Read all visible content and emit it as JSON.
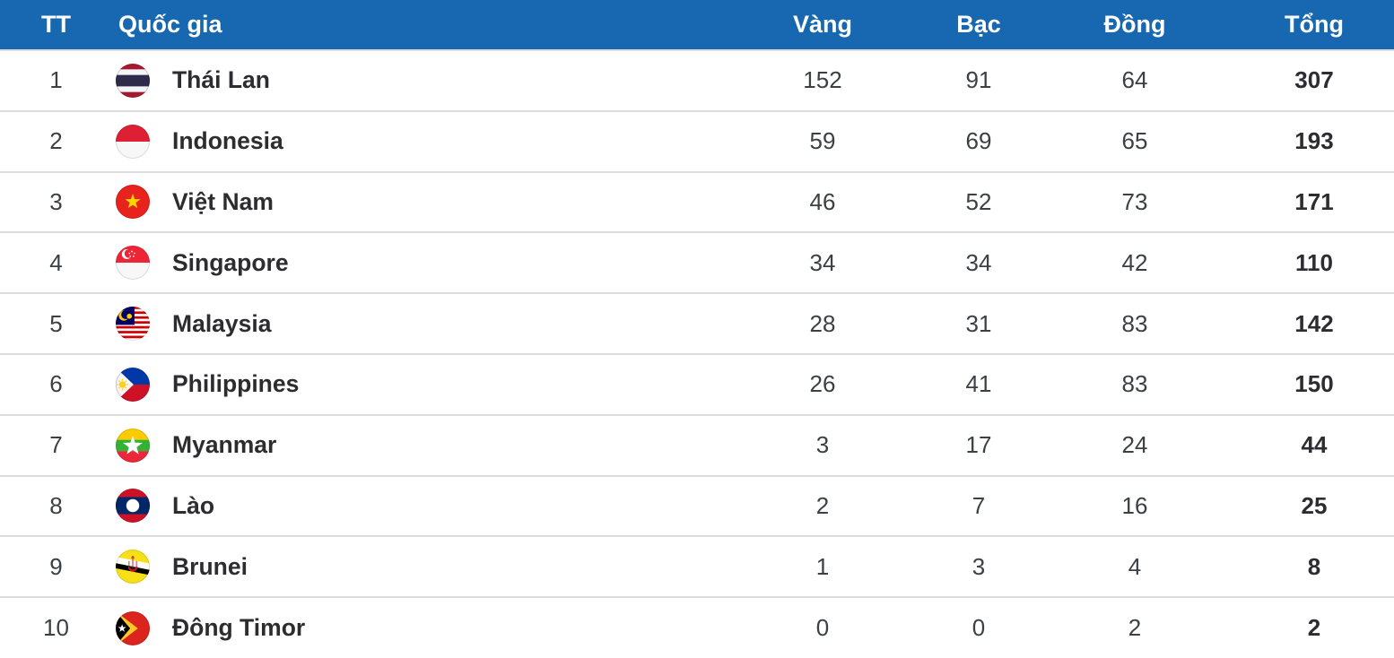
{
  "table": {
    "columns": [
      {
        "key": "rank",
        "label": "TT"
      },
      {
        "key": "country",
        "label": "Quốc gia"
      },
      {
        "key": "gold",
        "label": "Vàng"
      },
      {
        "key": "silver",
        "label": "Bạc"
      },
      {
        "key": "bronze",
        "label": "Đồng"
      },
      {
        "key": "total",
        "label": "Tổng"
      }
    ],
    "rows": [
      {
        "rank": "1",
        "country": "Thái Lan",
        "flag": "thailand-flag-icon",
        "gold": "152",
        "silver": "91",
        "bronze": "64",
        "total": "307"
      },
      {
        "rank": "2",
        "country": "Indonesia",
        "flag": "indonesia-flag-icon",
        "gold": "59",
        "silver": "69",
        "bronze": "65",
        "total": "193"
      },
      {
        "rank": "3",
        "country": "Việt Nam",
        "flag": "vietnam-flag-icon",
        "gold": "46",
        "silver": "52",
        "bronze": "73",
        "total": "171"
      },
      {
        "rank": "4",
        "country": "Singapore",
        "flag": "singapore-flag-icon",
        "gold": "34",
        "silver": "34",
        "bronze": "42",
        "total": "110"
      },
      {
        "rank": "5",
        "country": "Malaysia",
        "flag": "malaysia-flag-icon",
        "gold": "28",
        "silver": "31",
        "bronze": "83",
        "total": "142"
      },
      {
        "rank": "6",
        "country": "Philippines",
        "flag": "philippines-flag-icon",
        "gold": "26",
        "silver": "41",
        "bronze": "83",
        "total": "150"
      },
      {
        "rank": "7",
        "country": "Myanmar",
        "flag": "myanmar-flag-icon",
        "gold": "3",
        "silver": "17",
        "bronze": "24",
        "total": "44"
      },
      {
        "rank": "8",
        "country": "Lào",
        "flag": "laos-flag-icon",
        "gold": "2",
        "silver": "7",
        "bronze": "16",
        "total": "25"
      },
      {
        "rank": "9",
        "country": "Brunei",
        "flag": "brunei-flag-icon",
        "gold": "1",
        "silver": "3",
        "bronze": "4",
        "total": "8"
      },
      {
        "rank": "10",
        "country": "Đông Timor",
        "flag": "east-timor-flag-icon",
        "gold": "0",
        "silver": "0",
        "bronze": "2",
        "total": "2"
      }
    ]
  },
  "chart_data": {
    "type": "table",
    "title": "",
    "columns": [
      "TT",
      "Quốc gia",
      "Vàng",
      "Bạc",
      "Đồng",
      "Tổng"
    ],
    "rows": [
      [
        1,
        "Thái Lan",
        152,
        91,
        64,
        307
      ],
      [
        2,
        "Indonesia",
        59,
        69,
        65,
        193
      ],
      [
        3,
        "Việt Nam",
        46,
        52,
        73,
        171
      ],
      [
        4,
        "Singapore",
        34,
        34,
        42,
        110
      ],
      [
        5,
        "Malaysia",
        28,
        31,
        83,
        142
      ],
      [
        6,
        "Philippines",
        26,
        41,
        83,
        150
      ],
      [
        7,
        "Myanmar",
        3,
        17,
        24,
        44
      ],
      [
        8,
        "Lào",
        2,
        7,
        16,
        25
      ],
      [
        9,
        "Brunei",
        1,
        3,
        4,
        8
      ],
      [
        10,
        "Đông Timor",
        0,
        0,
        2,
        2
      ]
    ]
  },
  "colors": {
    "header_background": "#1768b0",
    "header_text": "#ffffff",
    "row_background": "#ffffff",
    "row_divider": "#dcdcdc",
    "number_text": "#3c4043",
    "country_text": "#2d2d31"
  }
}
